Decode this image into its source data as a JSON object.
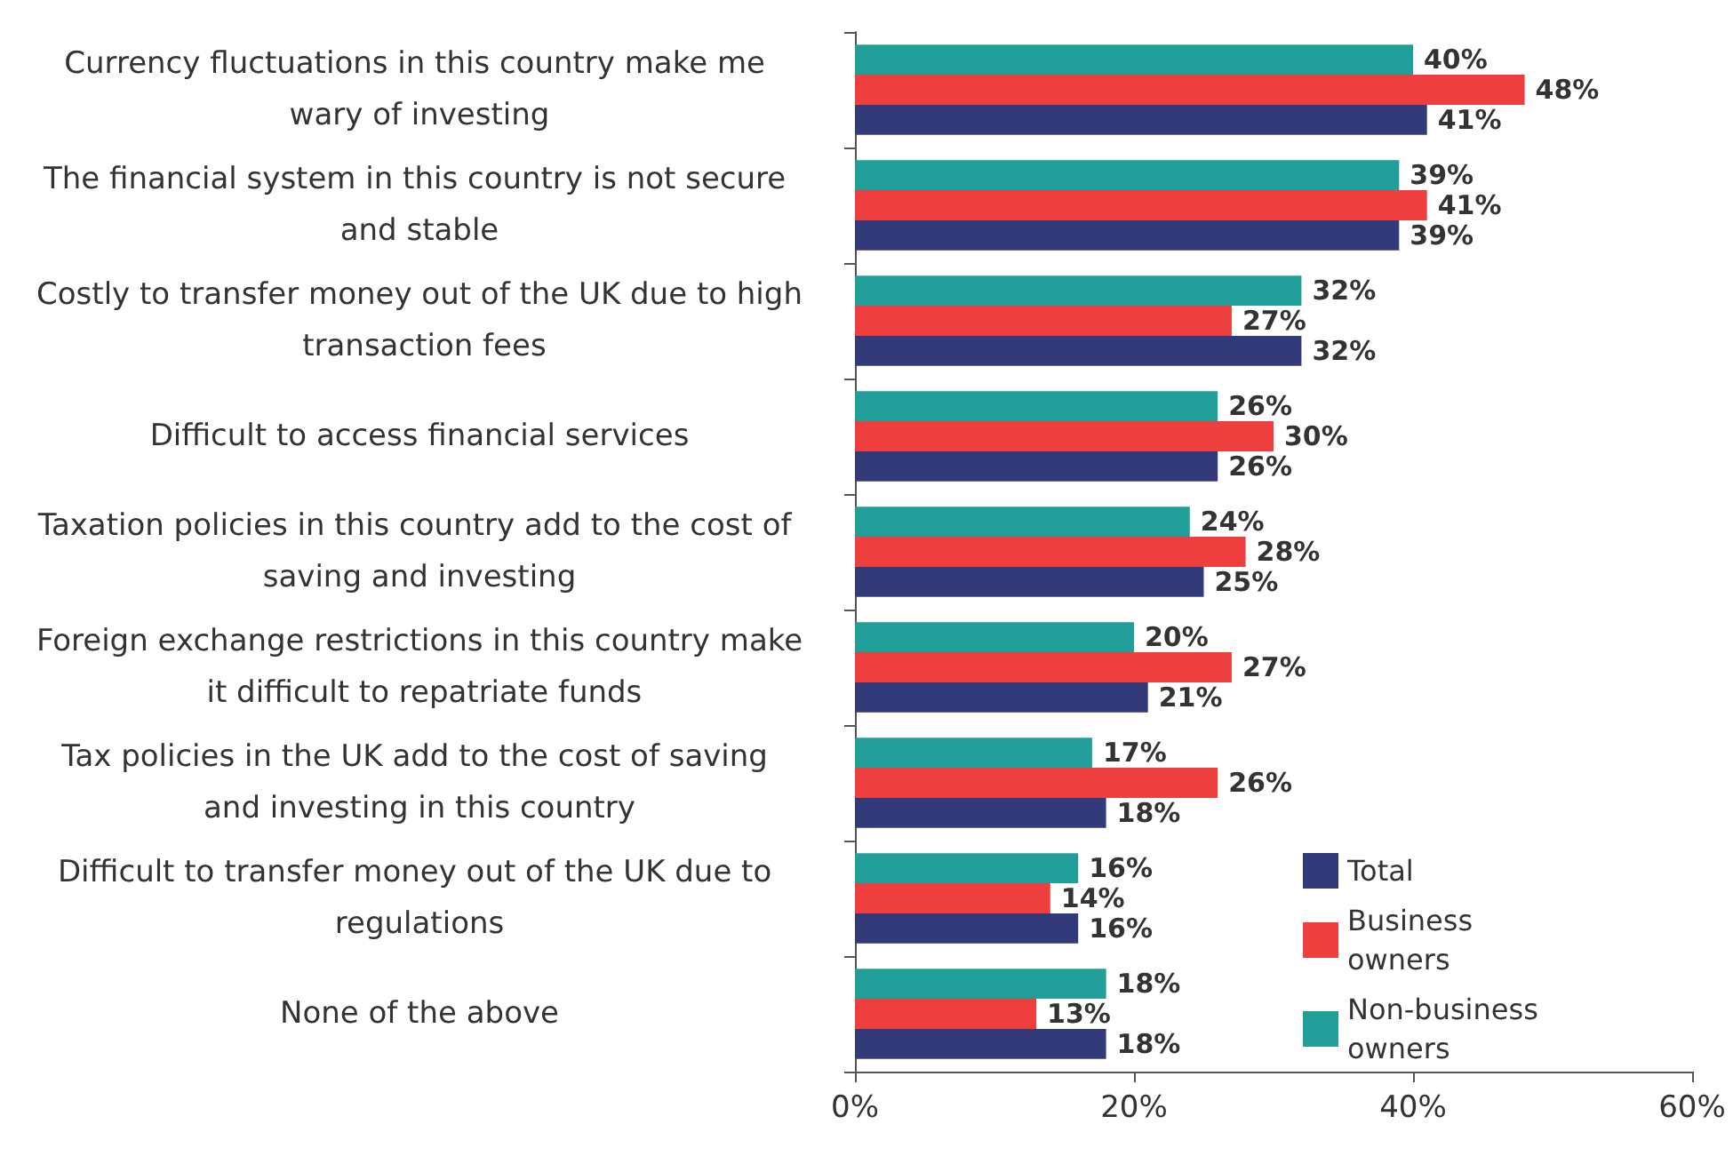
{
  "chart_data": {
    "type": "bar",
    "orientation": "horizontal",
    "categories": [
      "Currency fluctuations in this country make me wary of investing",
      "The financial system in this country is not secure and stable",
      "Costly to transfer money out of the UK due to high transaction fees",
      "Difficult to access financial services",
      "Taxation policies in this country add to the cost of saving and investing",
      "Foreign exchange restrictions in this country make it difficult to repatriate funds",
      "Tax policies in the UK add to the cost of saving and investing in this country",
      "Difficult to transfer money out of the UK due to regulations",
      "None of the above"
    ],
    "series": [
      {
        "name": "Total",
        "color": "#333a7a",
        "values": [
          41,
          39,
          32,
          26,
          25,
          21,
          18,
          16,
          18
        ],
        "value_labels": [
          "41%",
          "39%",
          "32%",
          "26%",
          "25%",
          "21%",
          "18%",
          "16%",
          "18%"
        ]
      },
      {
        "name": "Business owners",
        "color": "#ee3e3e",
        "values": [
          48,
          41,
          27,
          30,
          28,
          27,
          26,
          14,
          13
        ],
        "value_labels": [
          "48%",
          "41%",
          "27%",
          "30%",
          "28%",
          "27%",
          "26%",
          "14%",
          "13%"
        ]
      },
      {
        "name": "Non-business owners",
        "color": "#219e9a",
        "values": [
          40,
          39,
          32,
          26,
          24,
          20,
          17,
          16,
          18
        ],
        "value_labels": [
          "40%",
          "39%",
          "32%",
          "26%",
          "24%",
          "20%",
          "17%",
          "16%",
          "18%"
        ]
      }
    ],
    "xlim": [
      0,
      60
    ],
    "xticks": [
      {
        "value": 0,
        "label": "0%"
      },
      {
        "value": 20,
        "label": "20%"
      },
      {
        "value": 40,
        "label": "40%"
      },
      {
        "value": 60,
        "label": "60%"
      }
    ],
    "grid": false,
    "legend": "bottom right"
  }
}
